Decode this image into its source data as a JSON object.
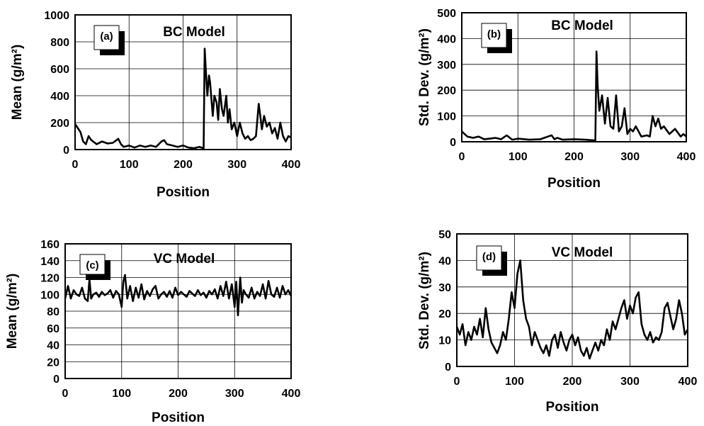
{
  "chart_data": [
    {
      "type": "line",
      "panel_label": "(a)",
      "title": "BC Model",
      "xlabel": "Position",
      "ylabel": "Mean (g/m²)",
      "xlim": [
        0,
        400
      ],
      "ylim": [
        0,
        1000
      ],
      "xticks": [
        0,
        100,
        200,
        300,
        400
      ],
      "yticks": [
        0,
        200,
        400,
        600,
        800,
        1000
      ],
      "grid": true,
      "series": [
        {
          "x": [
            0,
            5,
            10,
            15,
            20,
            25,
            30,
            40,
            50,
            60,
            70,
            80,
            85,
            90,
            100,
            110,
            120,
            130,
            140,
            150,
            160,
            165,
            170,
            180,
            190,
            200,
            210,
            220,
            230,
            238,
            240,
            242,
            245,
            248,
            250,
            255,
            258,
            262,
            265,
            268,
            272,
            275,
            280,
            283,
            286,
            290,
            295,
            300,
            305,
            310,
            315,
            320,
            325,
            330,
            335,
            340,
            343,
            346,
            350,
            355,
            360,
            365,
            370,
            375,
            380,
            385,
            390,
            395,
            400
          ],
          "values": [
            190,
            160,
            130,
            60,
            40,
            100,
            70,
            40,
            60,
            45,
            50,
            80,
            40,
            20,
            30,
            15,
            30,
            20,
            30,
            20,
            60,
            70,
            40,
            30,
            20,
            30,
            15,
            10,
            20,
            10,
            750,
            600,
            400,
            550,
            500,
            250,
            400,
            350,
            220,
            450,
            300,
            250,
            400,
            200,
            300,
            150,
            200,
            100,
            200,
            120,
            80,
            100,
            70,
            80,
            100,
            340,
            250,
            150,
            250,
            170,
            200,
            120,
            160,
            80,
            200,
            100,
            60,
            100,
            90
          ]
        }
      ]
    },
    {
      "type": "line",
      "panel_label": "(b)",
      "title": "BC Model",
      "xlabel": "Position",
      "ylabel": "Std. Dev. (g/m²)",
      "xlim": [
        0,
        400
      ],
      "ylim": [
        0,
        500
      ],
      "xticks": [
        0,
        100,
        200,
        300,
        400
      ],
      "yticks": [
        0,
        100,
        200,
        300,
        400,
        500
      ],
      "grid": true,
      "series": [
        {
          "x": [
            0,
            5,
            10,
            20,
            30,
            40,
            50,
            60,
            70,
            80,
            90,
            100,
            120,
            140,
            160,
            165,
            170,
            180,
            200,
            220,
            238,
            240,
            242,
            245,
            250,
            255,
            260,
            265,
            270,
            275,
            280,
            285,
            290,
            295,
            300,
            305,
            310,
            320,
            330,
            335,
            340,
            345,
            350,
            355,
            360,
            370,
            380,
            390,
            395,
            400
          ],
          "values": [
            40,
            30,
            20,
            15,
            20,
            10,
            12,
            15,
            10,
            25,
            8,
            12,
            8,
            10,
            25,
            10,
            15,
            8,
            10,
            8,
            5,
            350,
            220,
            120,
            180,
            70,
            170,
            60,
            50,
            180,
            40,
            60,
            130,
            30,
            50,
            40,
            60,
            20,
            25,
            20,
            100,
            60,
            90,
            50,
            60,
            30,
            50,
            20,
            30,
            20
          ]
        }
      ]
    },
    {
      "type": "line",
      "panel_label": "(c)",
      "title": "VC Model",
      "xlabel": "Position",
      "ylabel": "Mean (g/m²)",
      "xlim": [
        0,
        400
      ],
      "ylim": [
        0,
        160
      ],
      "xticks": [
        0,
        100,
        200,
        300,
        400
      ],
      "yticks": [
        0,
        20,
        40,
        60,
        80,
        100,
        120,
        140,
        160
      ],
      "grid": true,
      "series": [
        {
          "x": [
            0,
            5,
            10,
            15,
            20,
            25,
            30,
            35,
            40,
            43,
            46,
            50,
            55,
            60,
            65,
            70,
            75,
            80,
            85,
            90,
            95,
            100,
            103,
            106,
            110,
            115,
            120,
            125,
            130,
            135,
            140,
            145,
            150,
            155,
            160,
            165,
            170,
            175,
            180,
            185,
            190,
            195,
            200,
            205,
            210,
            215,
            220,
            225,
            230,
            235,
            240,
            245,
            250,
            255,
            260,
            265,
            270,
            275,
            280,
            285,
            290,
            295,
            300,
            303,
            306,
            310,
            313,
            316,
            320,
            325,
            330,
            335,
            340,
            345,
            350,
            355,
            360,
            365,
            370,
            375,
            380,
            385,
            390,
            395,
            400
          ],
          "values": [
            95,
            110,
            95,
            105,
            100,
            98,
            108,
            95,
            92,
            118,
            95,
            100,
            102,
            97,
            103,
            99,
            101,
            105,
            96,
            104,
            100,
            85,
            115,
            123,
            95,
            110,
            92,
            108,
            96,
            112,
            94,
            104,
            98,
            106,
            110,
            95,
            100,
            103,
            97,
            104,
            96,
            108,
            99,
            103,
            100,
            97,
            104,
            101,
            98,
            105,
            99,
            102,
            96,
            104,
            100,
            106,
            95,
            110,
            98,
            115,
            95,
            112,
            85,
            115,
            75,
            120,
            90,
            105,
            100,
            96,
            108,
            95,
            103,
            98,
            112,
            95,
            116,
            100,
            97,
            108,
            96,
            110,
            100,
            105,
            98
          ]
        }
      ]
    },
    {
      "type": "line",
      "panel_label": "(d)",
      "title": "VC Model",
      "xlabel": "Position",
      "ylabel": "Std. Dev. (g/m²)",
      "xlim": [
        0,
        400
      ],
      "ylim": [
        0,
        50
      ],
      "xticks": [
        0,
        100,
        200,
        300,
        400
      ],
      "yticks": [
        0,
        10,
        20,
        30,
        40,
        50
      ],
      "grid": true,
      "series": [
        {
          "x": [
            0,
            5,
            10,
            15,
            20,
            25,
            30,
            35,
            40,
            45,
            50,
            55,
            60,
            65,
            70,
            75,
            80,
            85,
            90,
            95,
            100,
            105,
            110,
            115,
            120,
            125,
            130,
            135,
            140,
            145,
            150,
            155,
            160,
            165,
            170,
            175,
            180,
            185,
            190,
            195,
            200,
            205,
            210,
            215,
            220,
            225,
            230,
            235,
            240,
            245,
            250,
            255,
            260,
            265,
            270,
            275,
            280,
            285,
            290,
            295,
            300,
            305,
            310,
            315,
            320,
            325,
            330,
            335,
            340,
            345,
            350,
            355,
            360,
            365,
            370,
            375,
            380,
            385,
            390,
            395,
            400
          ],
          "values": [
            15,
            12,
            16,
            8,
            13,
            10,
            15,
            12,
            18,
            11,
            22,
            14,
            9,
            7,
            5,
            8,
            13,
            10,
            18,
            28,
            22,
            35,
            40,
            25,
            18,
            15,
            8,
            13,
            10,
            7,
            5,
            8,
            4,
            10,
            12,
            7,
            13,
            9,
            6,
            10,
            12,
            8,
            11,
            6,
            4,
            7,
            3,
            6,
            9,
            6,
            10,
            8,
            14,
            10,
            17,
            14,
            18,
            22,
            25,
            18,
            23,
            20,
            26,
            28,
            16,
            12,
            10,
            13,
            9,
            11,
            10,
            13,
            22,
            24,
            19,
            14,
            18,
            25,
            20,
            12,
            14
          ]
        }
      ]
    }
  ]
}
